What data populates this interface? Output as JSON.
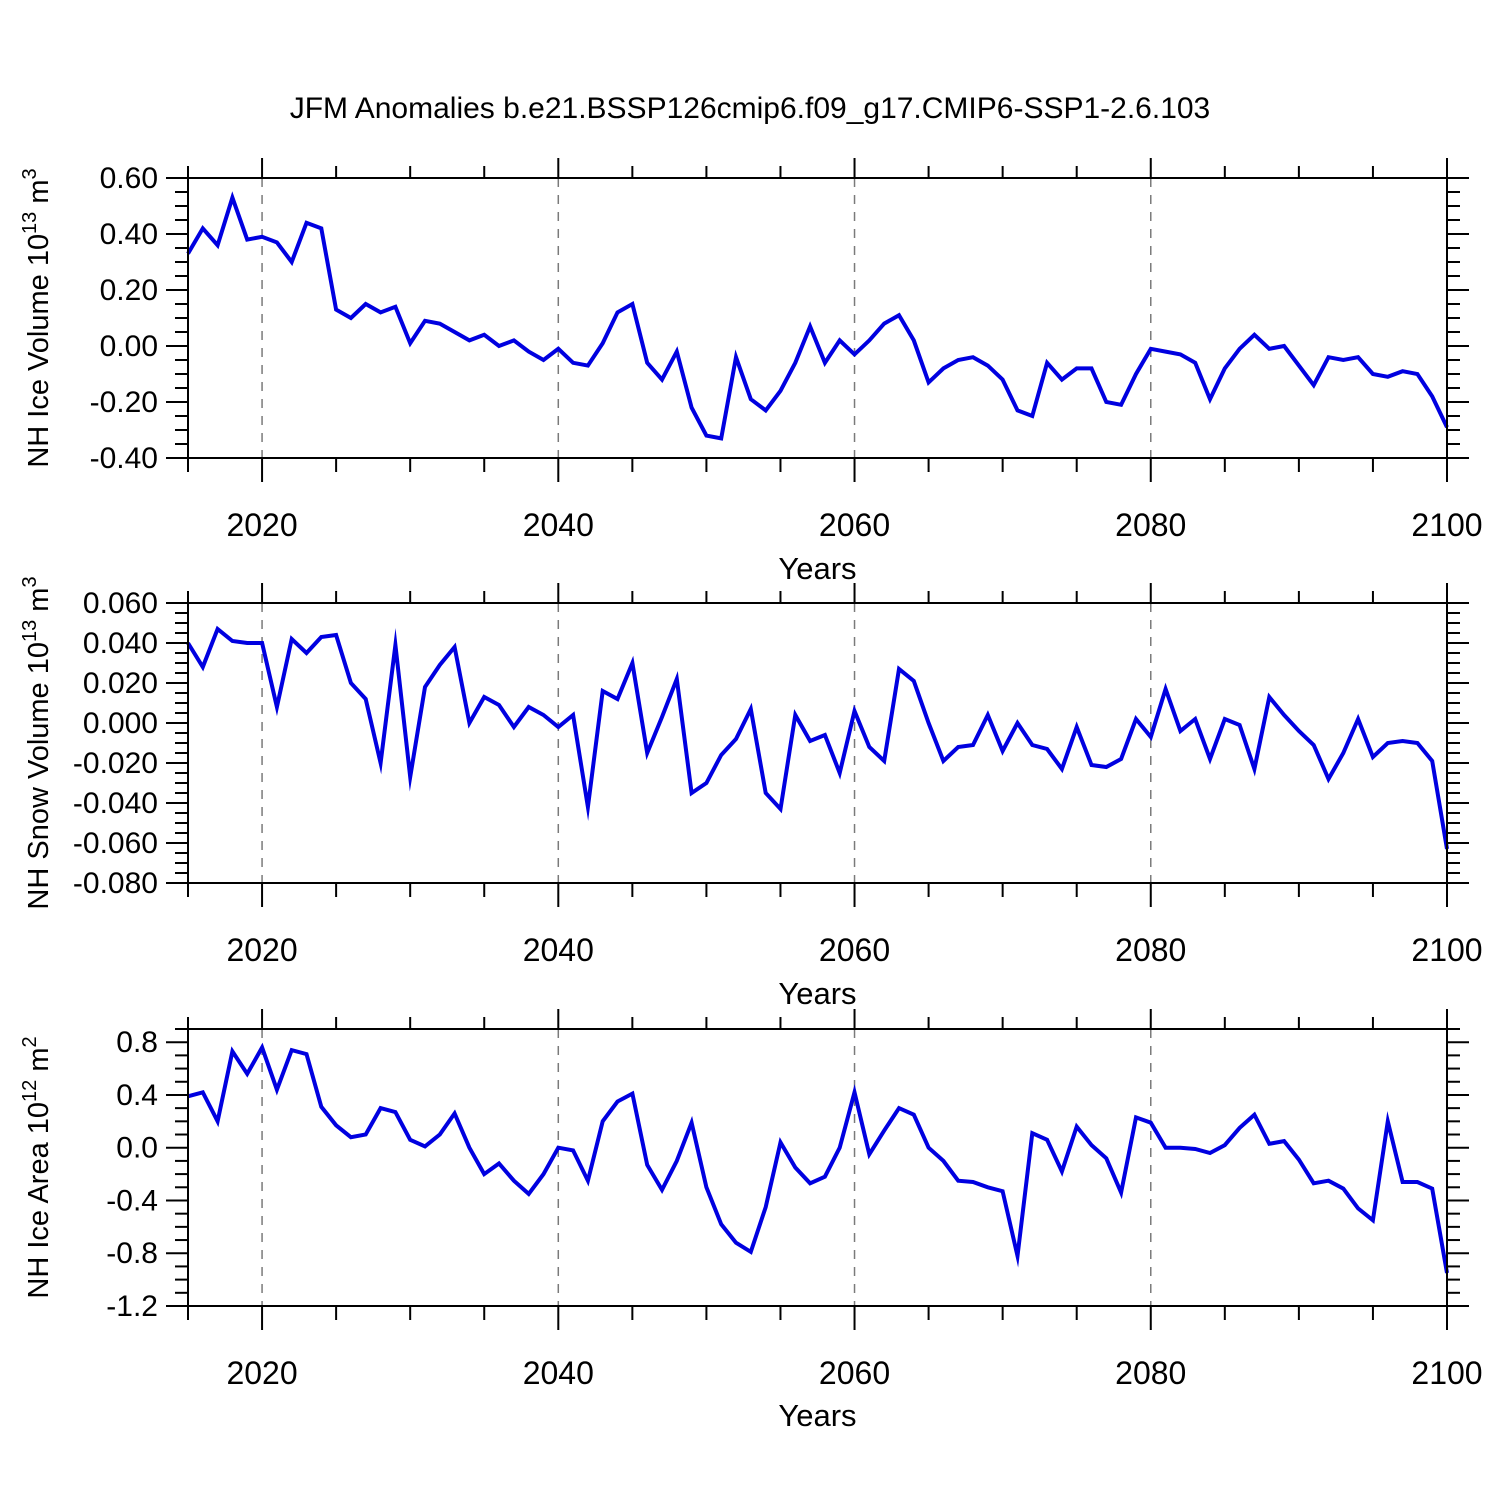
{
  "title": "JFM Anomalies b.e21.BSSP126cmip6.f09_g17.CMIP6-SSP1-2.6.103",
  "figure": {
    "background": "#ffffff",
    "line_color": "#0000e0",
    "axis_color": "#000000",
    "grid_color": "#7a7a7a"
  },
  "chart_data": [
    {
      "type": "line",
      "name": "nh-ice-volume",
      "ylabel": {
        "base": "NH Ice Volume 10",
        "exp": "13",
        "unit": " m",
        "unit_exp": "3"
      },
      "xlabel": "Years",
      "x_start": 2015,
      "x_end": 2100,
      "x_major_ticks": [
        2020,
        2040,
        2060,
        2080,
        2100
      ],
      "x_minor_step": 5,
      "grid_years": [
        2020,
        2040,
        2060,
        2080
      ],
      "ylim": [
        -0.4,
        0.6
      ],
      "y_major_labels": [
        "0.60",
        "0.40",
        "0.20",
        "0.00",
        "-0.20",
        "-0.40"
      ],
      "y_major_step": 0.2,
      "y_minor_step": 0.05,
      "grid": "dashed-vertical",
      "legend": "none",
      "values": [
        0.33,
        0.42,
        0.36,
        0.53,
        0.38,
        0.39,
        0.37,
        0.3,
        0.44,
        0.42,
        0.13,
        0.1,
        0.15,
        0.12,
        0.14,
        0.01,
        0.09,
        0.08,
        0.05,
        0.02,
        0.04,
        0.0,
        0.02,
        -0.02,
        -0.05,
        -0.01,
        -0.06,
        -0.07,
        0.01,
        0.12,
        0.15,
        -0.06,
        -0.12,
        -0.02,
        -0.22,
        -0.32,
        -0.33,
        -0.04,
        -0.19,
        -0.23,
        -0.16,
        -0.06,
        0.07,
        -0.06,
        0.02,
        -0.03,
        0.02,
        0.08,
        0.11,
        0.02,
        -0.13,
        -0.08,
        -0.05,
        -0.04,
        -0.07,
        -0.12,
        -0.23,
        -0.25,
        -0.06,
        -0.12,
        -0.08,
        -0.08,
        -0.2,
        -0.21,
        -0.1,
        -0.01,
        -0.02,
        -0.03,
        -0.06,
        -0.19,
        -0.08,
        -0.01,
        0.04,
        -0.01,
        0.0,
        -0.07,
        -0.14,
        -0.04,
        -0.05,
        -0.04,
        -0.1,
        -0.11,
        -0.09,
        -0.1,
        -0.18,
        -0.29
      ]
    },
    {
      "type": "line",
      "name": "nh-snow-volume",
      "ylabel": {
        "base": "NH Snow Volume 10",
        "exp": "13",
        "unit": " m",
        "unit_exp": "3"
      },
      "xlabel": "Years",
      "x_start": 2015,
      "x_end": 2100,
      "x_major_ticks": [
        2020,
        2040,
        2060,
        2080,
        2100
      ],
      "x_minor_step": 5,
      "grid_years": [
        2020,
        2040,
        2060,
        2080
      ],
      "ylim": [
        -0.08,
        0.06
      ],
      "y_major_labels": [
        "0.060",
        "0.040",
        "0.020",
        "0.000",
        "-0.020",
        "-0.040",
        "-0.060",
        "-0.080"
      ],
      "y_major_step": 0.02,
      "y_minor_step": 0.005,
      "grid": "dashed-vertical",
      "legend": "none",
      "values": [
        0.04,
        0.028,
        0.047,
        0.041,
        0.04,
        0.04,
        0.008,
        0.042,
        0.035,
        0.043,
        0.044,
        0.02,
        0.012,
        -0.02,
        0.039,
        -0.027,
        0.018,
        0.029,
        0.038,
        0.0,
        0.013,
        0.009,
        -0.002,
        0.008,
        0.004,
        -0.002,
        0.004,
        -0.042,
        0.016,
        0.012,
        0.03,
        -0.015,
        0.003,
        0.022,
        -0.035,
        -0.03,
        -0.016,
        -0.008,
        0.007,
        -0.035,
        -0.043,
        0.004,
        -0.009,
        -0.006,
        -0.025,
        0.006,
        -0.012,
        -0.019,
        0.027,
        0.021,
        0.0,
        -0.019,
        -0.012,
        -0.011,
        0.004,
        -0.014,
        0.0,
        -0.011,
        -0.013,
        -0.023,
        -0.002,
        -0.021,
        -0.022,
        -0.018,
        0.002,
        -0.007,
        0.017,
        -0.004,
        0.002,
        -0.018,
        0.002,
        -0.001,
        -0.023,
        0.013,
        0.004,
        -0.004,
        -0.011,
        -0.028,
        -0.015,
        0.002,
        -0.017,
        -0.01,
        -0.009,
        -0.01,
        -0.019,
        -0.063
      ]
    },
    {
      "type": "line",
      "name": "nh-ice-area",
      "ylabel": {
        "base": "NH Ice Area 10",
        "exp": "12",
        "unit": " m",
        "unit_exp": "2"
      },
      "xlabel": "Years",
      "x_start": 2015,
      "x_end": 2100,
      "x_major_ticks": [
        2020,
        2040,
        2060,
        2080,
        2100
      ],
      "x_minor_step": 5,
      "grid_years": [
        2020,
        2040,
        2060,
        2080
      ],
      "ylim": [
        -1.2,
        0.9
      ],
      "y_major_labels": [
        "0.8",
        "0.4",
        "0.0",
        "-0.4",
        "-0.8",
        "-1.2"
      ],
      "y_major_step": 0.4,
      "y_minor_step": 0.1,
      "grid": "dashed-vertical",
      "legend": "none",
      "values": [
        0.39,
        0.42,
        0.2,
        0.73,
        0.56,
        0.76,
        0.44,
        0.74,
        0.71,
        0.31,
        0.17,
        0.08,
        0.1,
        0.3,
        0.27,
        0.06,
        0.01,
        0.1,
        0.26,
        0.0,
        -0.2,
        -0.12,
        -0.25,
        -0.35,
        -0.2,
        0.0,
        -0.02,
        -0.25,
        0.2,
        0.35,
        0.41,
        -0.13,
        -0.32,
        -0.1,
        0.19,
        -0.3,
        -0.58,
        -0.72,
        -0.79,
        -0.45,
        0.04,
        -0.15,
        -0.27,
        -0.22,
        0.0,
        0.42,
        -0.05,
        0.13,
        0.3,
        0.25,
        0.0,
        -0.1,
        -0.25,
        -0.26,
        -0.3,
        -0.33,
        -0.82,
        0.11,
        0.06,
        -0.18,
        0.16,
        0.02,
        -0.08,
        -0.34,
        0.23,
        0.19,
        0.0,
        0.0,
        -0.01,
        -0.04,
        0.02,
        0.15,
        0.25,
        0.03,
        0.05,
        -0.09,
        -0.27,
        -0.25,
        -0.31,
        -0.46,
        -0.55,
        0.2,
        -0.26,
        -0.26,
        -0.31,
        -0.95
      ]
    }
  ]
}
